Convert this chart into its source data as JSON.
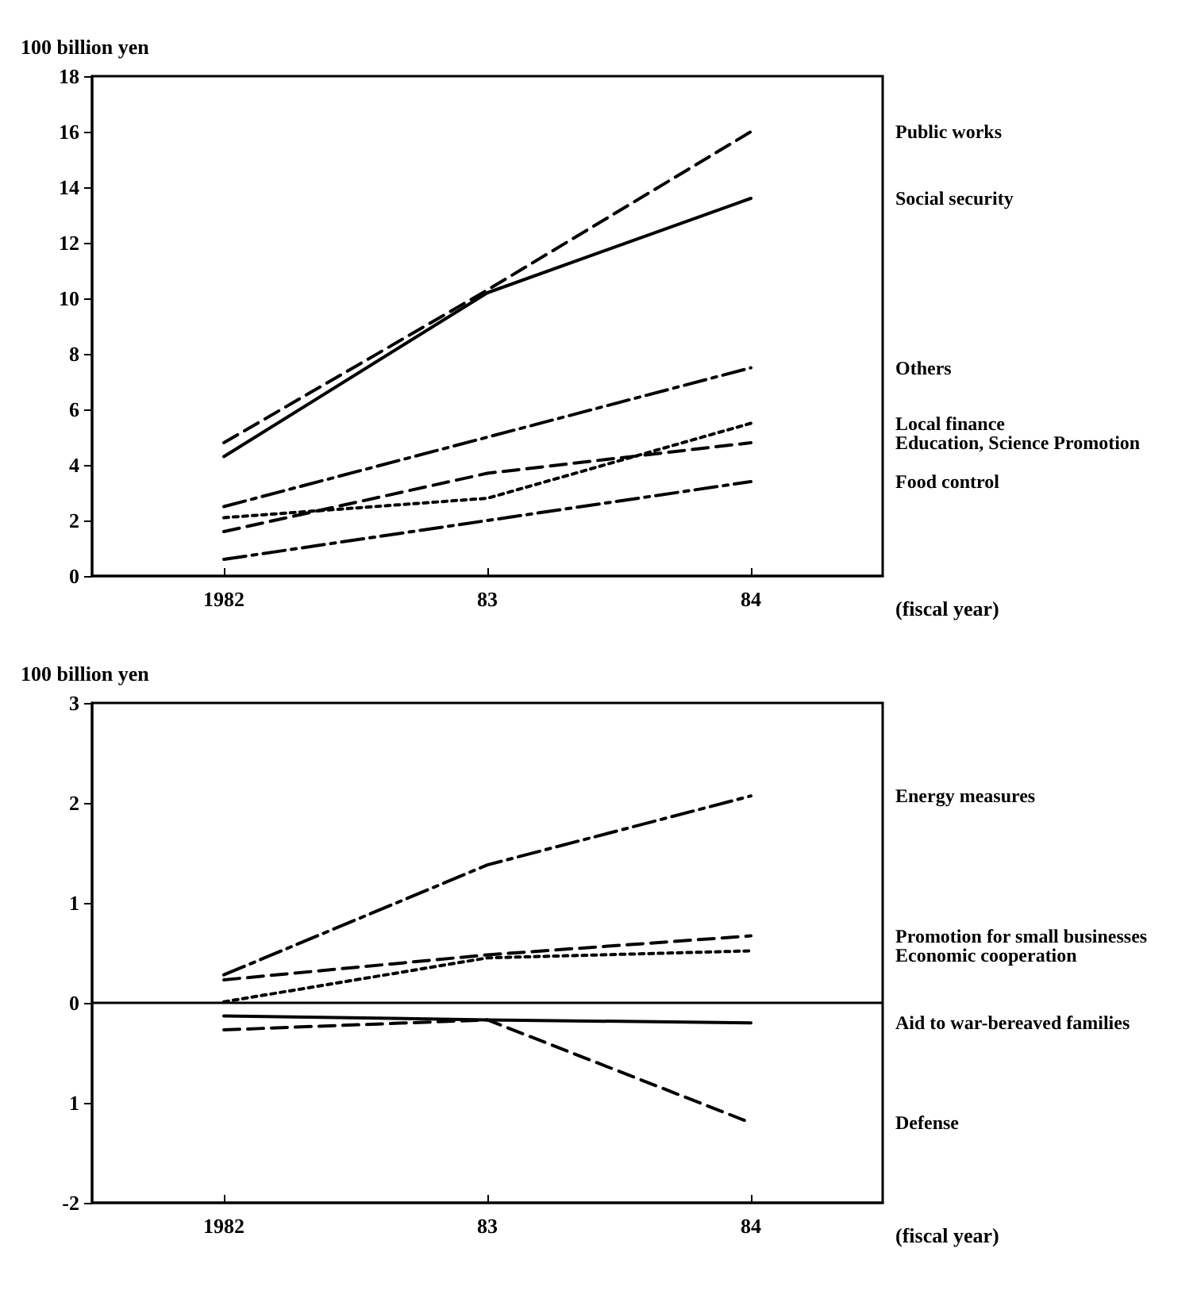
{
  "chart_data": [
    {
      "type": "line",
      "ylabel": "100 billion yen",
      "xlabel": "(fiscal year)",
      "categories": [
        "1982",
        "83",
        "84"
      ],
      "ylim": [
        0,
        18
      ],
      "yticks": [
        0,
        2,
        4,
        6,
        8,
        10,
        12,
        14,
        16,
        18
      ],
      "grid": false,
      "legend": false,
      "marker": "none",
      "series": [
        {
          "name": "Public works",
          "color": "#000000",
          "line_style": "dashed",
          "values": [
            4.8,
            10.3,
            16.0
          ]
        },
        {
          "name": "Social security",
          "color": "#000000",
          "line_style": "solid",
          "values": [
            4.3,
            10.2,
            13.6
          ]
        },
        {
          "name": "Others",
          "color": "#000000",
          "line_style": "dashdot",
          "values": [
            2.5,
            5.0,
            7.5
          ]
        },
        {
          "name": "Local finance",
          "color": "#000000",
          "line_style": "dotted",
          "values": [
            2.1,
            2.8,
            5.5
          ]
        },
        {
          "name": "Education, Science Promotion",
          "color": "#000000",
          "line_style": "dashed",
          "values": [
            1.6,
            3.7,
            4.8
          ]
        },
        {
          "name": "Food control",
          "color": "#000000",
          "line_style": "dashdot",
          "values": [
            0.6,
            2.0,
            3.4
          ]
        }
      ]
    },
    {
      "type": "line",
      "ylabel": "100 billion yen",
      "xlabel": "(fiscal year)",
      "categories": [
        "1982",
        "83",
        "84"
      ],
      "ylim": [
        -2,
        3
      ],
      "yticks": [
        -2,
        {
          "value": -1,
          "label": "1"
        },
        0,
        1,
        2,
        3
      ],
      "grid": false,
      "legend": false,
      "marker": "none",
      "ref_lines": [
        {
          "axis": "y",
          "value": 0,
          "color": "#000000",
          "line_style": "solid"
        }
      ],
      "series": [
        {
          "name": "Energy measures",
          "color": "#000000",
          "line_style": "dashdot",
          "values": [
            0.28,
            1.38,
            2.07
          ]
        },
        {
          "name": "Promotion for small businesses",
          "color": "#000000",
          "line_style": "dashed",
          "values": [
            0.23,
            0.48,
            0.67
          ]
        },
        {
          "name": "Economic cooperation",
          "color": "#000000",
          "line_style": "dotted",
          "values": [
            0.01,
            0.45,
            0.52
          ]
        },
        {
          "name": "Aid to war-bereaved families",
          "color": "#000000",
          "line_style": "solid",
          "values": [
            -0.13,
            -0.17,
            -0.2
          ]
        },
        {
          "name": "Defense",
          "color": "#000000",
          "line_style": "dashed",
          "values": [
            -0.27,
            -0.17,
            -1.2
          ]
        }
      ]
    }
  ]
}
